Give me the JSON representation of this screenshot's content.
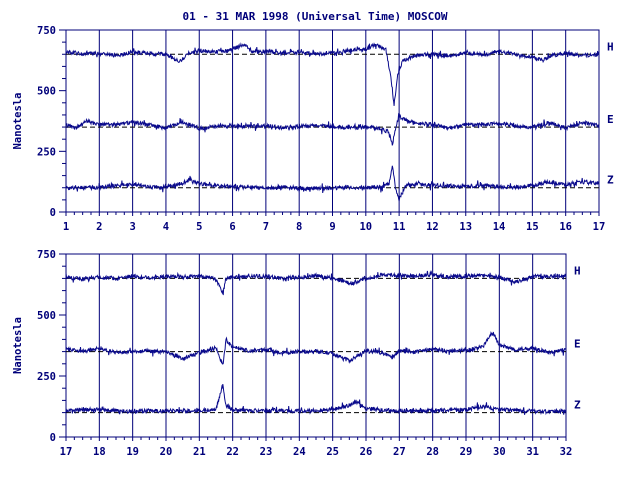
{
  "title": "01 - 31 MAR 1998 (Universal Time) MOSCOW",
  "colors": {
    "axis": "#00007a",
    "trace": "#0a0a8c",
    "baseline": "#000000"
  },
  "chart_data": [
    {
      "type": "line",
      "ylabel": "Nanotesla",
      "ylim": [
        0,
        750
      ],
      "yticks": [
        0,
        250,
        500,
        750
      ],
      "xlim": [
        1,
        17
      ],
      "xticks": [
        "1",
        "2",
        "3",
        "4",
        "5",
        "6",
        "7",
        "8",
        "9",
        "10",
        "11",
        "12",
        "13",
        "14",
        "15",
        "16",
        "17"
      ],
      "baselines": [
        650,
        350,
        100
      ],
      "series": [
        {
          "name": "H",
          "base": 650,
          "points": [
            [
              1,
              660
            ],
            [
              1.5,
              650
            ],
            [
              2,
              655
            ],
            [
              2.5,
              645
            ],
            [
              3,
              660
            ],
            [
              3.5,
              652
            ],
            [
              4,
              650
            ],
            [
              4.4,
              618
            ],
            [
              4.7,
              655
            ],
            [
              5,
              665
            ],
            [
              5.5,
              660
            ],
            [
              6,
              670
            ],
            [
              6.3,
              690
            ],
            [
              6.6,
              660
            ],
            [
              7,
              662
            ],
            [
              7.5,
              655
            ],
            [
              8,
              660
            ],
            [
              8.5,
              650
            ],
            [
              9,
              655
            ],
            [
              9.5,
              665
            ],
            [
              10,
              672
            ],
            [
              10.3,
              688
            ],
            [
              10.6,
              670
            ],
            [
              10.75,
              560
            ],
            [
              10.85,
              440
            ],
            [
              10.95,
              560
            ],
            [
              11.1,
              620
            ],
            [
              11.4,
              640
            ],
            [
              11.7,
              648
            ],
            [
              12,
              650
            ],
            [
              12.5,
              645
            ],
            [
              13,
              655
            ],
            [
              13.5,
              648
            ],
            [
              14,
              660
            ],
            [
              14.5,
              650
            ],
            [
              15,
              640
            ],
            [
              15.3,
              625
            ],
            [
              15.6,
              645
            ],
            [
              16,
              655
            ],
            [
              16.5,
              645
            ],
            [
              17,
              650
            ]
          ]
        },
        {
          "name": "E",
          "base": 350,
          "points": [
            [
              1,
              360
            ],
            [
              1.3,
              345
            ],
            [
              1.6,
              375
            ],
            [
              2,
              360
            ],
            [
              2.5,
              360
            ],
            [
              3,
              370
            ],
            [
              3.5,
              360
            ],
            [
              4,
              345
            ],
            [
              4.5,
              372
            ],
            [
              5,
              345
            ],
            [
              5.5,
              352
            ],
            [
              6,
              355
            ],
            [
              6.5,
              352
            ],
            [
              7,
              356
            ],
            [
              7.5,
              348
            ],
            [
              8,
              352
            ],
            [
              8.5,
              356
            ],
            [
              9,
              352
            ],
            [
              9.5,
              345
            ],
            [
              10,
              352
            ],
            [
              10.5,
              340
            ],
            [
              10.7,
              330
            ],
            [
              10.8,
              280
            ],
            [
              10.9,
              350
            ],
            [
              11,
              395
            ],
            [
              11.3,
              372
            ],
            [
              11.6,
              365
            ],
            [
              12,
              362
            ],
            [
              12.5,
              345
            ],
            [
              13,
              362
            ],
            [
              13.5,
              358
            ],
            [
              14,
              365
            ],
            [
              14.5,
              356
            ],
            [
              15,
              348
            ],
            [
              15.5,
              370
            ],
            [
              16,
              345
            ],
            [
              16.5,
              370
            ],
            [
              17,
              355
            ]
          ]
        },
        {
          "name": "Z",
          "base": 100,
          "points": [
            [
              1,
              98
            ],
            [
              1.5,
              100
            ],
            [
              2,
              102
            ],
            [
              2.5,
              108
            ],
            [
              3,
              115
            ],
            [
              3.5,
              104
            ],
            [
              4,
              102
            ],
            [
              4.5,
              118
            ],
            [
              4.7,
              135
            ],
            [
              5,
              118
            ],
            [
              5.5,
              108
            ],
            [
              6,
              104
            ],
            [
              6.5,
              102
            ],
            [
              7,
              98
            ],
            [
              7.5,
              101
            ],
            [
              8,
              99
            ],
            [
              8.5,
              97
            ],
            [
              9,
              98
            ],
            [
              9.5,
              101
            ],
            [
              10,
              100
            ],
            [
              10.5,
              103
            ],
            [
              10.7,
              120
            ],
            [
              10.8,
              190
            ],
            [
              10.9,
              90
            ],
            [
              11,
              50
            ],
            [
              11.2,
              110
            ],
            [
              11.5,
              115
            ],
            [
              12,
              110
            ],
            [
              12.5,
              108
            ],
            [
              13,
              105
            ],
            [
              13.5,
              112
            ],
            [
              14,
              104
            ],
            [
              14.5,
              102
            ],
            [
              15,
              110
            ],
            [
              15.5,
              125
            ],
            [
              16,
              112
            ],
            [
              16.5,
              122
            ],
            [
              17,
              118
            ]
          ]
        }
      ]
    },
    {
      "type": "line",
      "ylabel": "Nanotesla",
      "ylim": [
        0,
        750
      ],
      "yticks": [
        0,
        250,
        500,
        750
      ],
      "xlim": [
        17,
        32
      ],
      "xticks": [
        "17",
        "18",
        "19",
        "20",
        "21",
        "22",
        "23",
        "24",
        "25",
        "26",
        "27",
        "28",
        "29",
        "30",
        "31",
        "32"
      ],
      "baselines": [
        650,
        350,
        100
      ],
      "series": [
        {
          "name": "H",
          "base": 650,
          "points": [
            [
              17,
              655
            ],
            [
              17.5,
              648
            ],
            [
              18,
              655
            ],
            [
              18.5,
              650
            ],
            [
              19,
              660
            ],
            [
              19.5,
              652
            ],
            [
              20,
              658
            ],
            [
              20.5,
              655
            ],
            [
              21,
              660
            ],
            [
              21.5,
              650
            ],
            [
              21.7,
              590
            ],
            [
              21.8,
              650
            ],
            [
              22,
              655
            ],
            [
              22.5,
              660
            ],
            [
              23,
              658
            ],
            [
              23.5,
              650
            ],
            [
              24,
              655
            ],
            [
              24.5,
              660
            ],
            [
              25,
              650
            ],
            [
              25.6,
              630
            ],
            [
              26,
              650
            ],
            [
              26.5,
              665
            ],
            [
              27,
              660
            ],
            [
              27.5,
              660
            ],
            [
              28,
              665
            ],
            [
              28.5,
              655
            ],
            [
              29,
              660
            ],
            [
              29.5,
              662
            ],
            [
              30,
              655
            ],
            [
              30.5,
              635
            ],
            [
              31,
              658
            ],
            [
              31.5,
              660
            ],
            [
              32,
              662
            ]
          ]
        },
        {
          "name": "E",
          "base": 350,
          "points": [
            [
              17,
              360
            ],
            [
              17.5,
              350
            ],
            [
              18,
              365
            ],
            [
              18.5,
              345
            ],
            [
              19,
              350
            ],
            [
              19.5,
              352
            ],
            [
              20,
              348
            ],
            [
              20.5,
              320
            ],
            [
              21,
              345
            ],
            [
              21.5,
              365
            ],
            [
              21.7,
              290
            ],
            [
              21.8,
              395
            ],
            [
              22,
              370
            ],
            [
              22.5,
              352
            ],
            [
              23,
              358
            ],
            [
              23.5,
              345
            ],
            [
              24,
              350
            ],
            [
              24.5,
              352
            ],
            [
              25,
              342
            ],
            [
              25.5,
              312
            ],
            [
              26,
              352
            ],
            [
              26.5,
              345
            ],
            [
              26.8,
              325
            ],
            [
              27,
              355
            ],
            [
              27.5,
              348
            ],
            [
              28,
              360
            ],
            [
              28.5,
              352
            ],
            [
              29,
              355
            ],
            [
              29.5,
              370
            ],
            [
              29.8,
              430
            ],
            [
              30,
              375
            ],
            [
              30.5,
              358
            ],
            [
              31,
              365
            ],
            [
              31.5,
              345
            ],
            [
              32,
              358
            ]
          ]
        },
        {
          "name": "Z",
          "base": 100,
          "points": [
            [
              17,
              108
            ],
            [
              17.5,
              110
            ],
            [
              18,
              112
            ],
            [
              18.5,
              108
            ],
            [
              19,
              105
            ],
            [
              19.5,
              108
            ],
            [
              20,
              106
            ],
            [
              20.5,
              108
            ],
            [
              21,
              108
            ],
            [
              21.5,
              115
            ],
            [
              21.7,
              215
            ],
            [
              21.8,
              130
            ],
            [
              22,
              112
            ],
            [
              22.5,
              108
            ],
            [
              23,
              110
            ],
            [
              23.5,
              108
            ],
            [
              24,
              106
            ],
            [
              24.5,
              110
            ],
            [
              25,
              112
            ],
            [
              25.5,
              130
            ],
            [
              25.7,
              145
            ],
            [
              26,
              118
            ],
            [
              26.5,
              110
            ],
            [
              27,
              108
            ],
            [
              27.5,
              106
            ],
            [
              28,
              108
            ],
            [
              28.5,
              110
            ],
            [
              29,
              112
            ],
            [
              29.5,
              125
            ],
            [
              30,
              112
            ],
            [
              30.5,
              110
            ],
            [
              31,
              106
            ],
            [
              31.5,
              104
            ],
            [
              32,
              106
            ]
          ]
        }
      ]
    }
  ]
}
